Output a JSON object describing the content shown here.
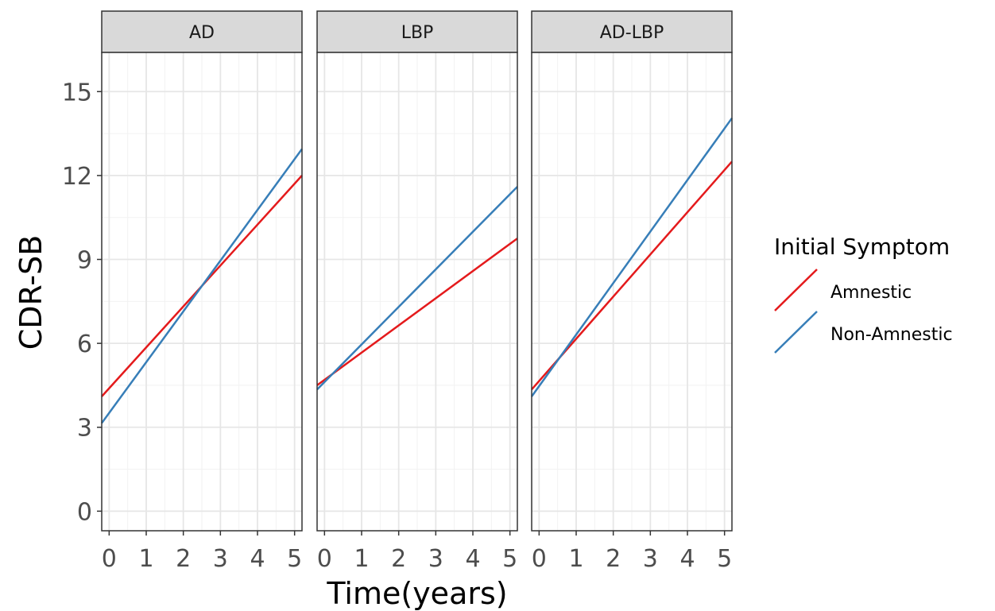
{
  "chart_data": {
    "type": "line",
    "facets": [
      "AD",
      "LBP",
      "AD-LBP"
    ],
    "xlabel": "Time(years)",
    "ylabel": "CDR-SB",
    "xlim": [
      -0.2,
      5.2
    ],
    "ylim": [
      -0.7,
      16.4
    ],
    "x_ticks": [
      0,
      1,
      2,
      3,
      4,
      5
    ],
    "y_ticks": [
      0,
      3,
      6,
      9,
      12,
      15
    ],
    "grid": true,
    "legend": {
      "title": "Initial Symptom",
      "placement": "right",
      "entries": [
        {
          "name": "Amnestic",
          "color": "#E41A1C"
        },
        {
          "name": "Non-Amnestic",
          "color": "#377EB8"
        }
      ]
    },
    "panels": [
      {
        "facet": "AD",
        "series": [
          {
            "name": "Amnestic",
            "color": "#E41A1C",
            "x": [
              -0.2,
              5.2
            ],
            "y": [
              4.1,
              12.0
            ]
          },
          {
            "name": "Non-Amnestic",
            "color": "#377EB8",
            "x": [
              -0.2,
              5.2
            ],
            "y": [
              3.15,
              12.95
            ]
          }
        ]
      },
      {
        "facet": "LBP",
        "series": [
          {
            "name": "Amnestic",
            "color": "#E41A1C",
            "x": [
              -0.2,
              5.2
            ],
            "y": [
              4.5,
              9.75
            ]
          },
          {
            "name": "Non-Amnestic",
            "color": "#377EB8",
            "x": [
              -0.2,
              5.2
            ],
            "y": [
              4.35,
              11.6
            ]
          }
        ]
      },
      {
        "facet": "AD-LBP",
        "series": [
          {
            "name": "Amnestic",
            "color": "#E41A1C",
            "x": [
              -0.2,
              5.2
            ],
            "y": [
              4.35,
              12.5
            ]
          },
          {
            "name": "Non-Amnestic",
            "color": "#377EB8",
            "x": [
              -0.2,
              5.2
            ],
            "y": [
              4.1,
              14.05
            ]
          }
        ]
      }
    ]
  }
}
